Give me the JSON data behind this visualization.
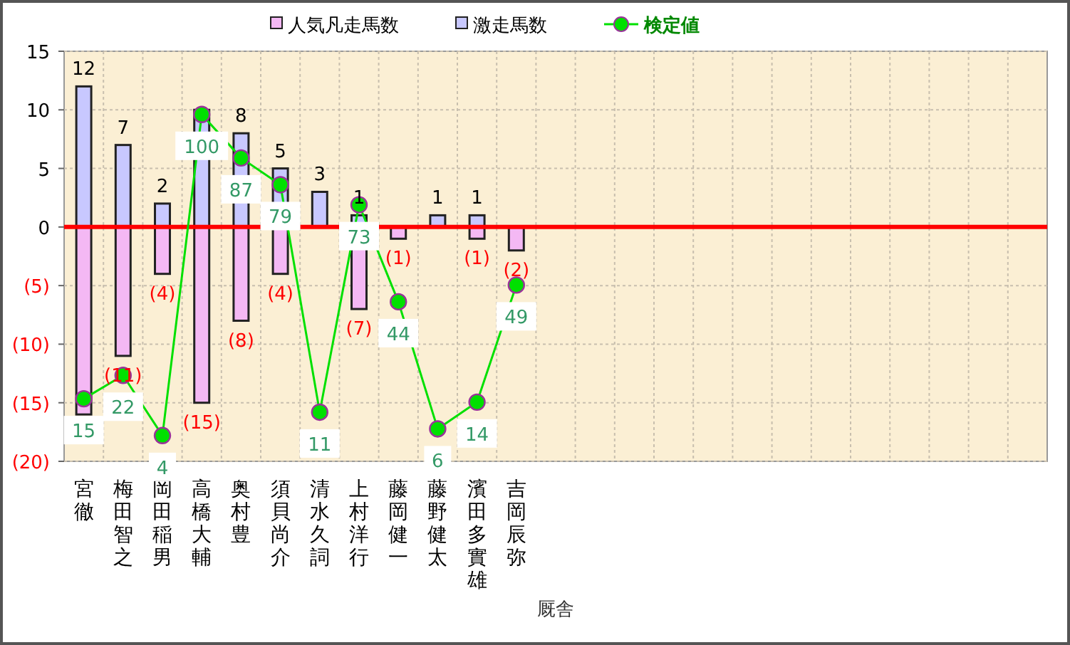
{
  "chart_data": {
    "type": "bar",
    "xlabel": "厩舎",
    "categories": [
      "宮徹",
      "梅田智之",
      "岡田稲男",
      "高橋大輔",
      "奥村豊",
      "須貝尚介",
      "清水久詞",
      "上村洋行",
      "藤岡健一",
      "藤野健太",
      "濱田多實雄",
      "吉岡辰弥",
      null,
      null,
      null,
      null,
      null,
      null,
      null,
      null,
      null,
      null,
      null,
      null,
      null
    ],
    "series": [
      {
        "name": "人気凡走馬数",
        "color": "#f4b8f4",
        "values": [
          -16,
          -11,
          -4,
          -15,
          -8,
          -4,
          null,
          -7,
          -1,
          null,
          -1,
          -2,
          null,
          null,
          null,
          null,
          null,
          null,
          null,
          null,
          null,
          null,
          null,
          null,
          null
        ],
        "value_labels": [
          null,
          "(11)",
          "(4)",
          "(15)",
          "(8)",
          "(4)",
          null,
          "(7)",
          "(1)",
          null,
          "(1)",
          "(2)",
          null,
          null,
          null,
          null,
          null,
          null,
          null,
          null,
          null,
          null,
          null,
          null,
          null
        ]
      },
      {
        "name": "激走馬数",
        "color": "#c8c8ff",
        "values": [
          12,
          7,
          2,
          10,
          8,
          5,
          3,
          1,
          null,
          1,
          1,
          null,
          null,
          null,
          null,
          null,
          null,
          null,
          null,
          null,
          null,
          null,
          null,
          null,
          null
        ],
        "value_labels": [
          "12",
          "7",
          "2",
          null,
          "8",
          "5",
          "3",
          "1",
          null,
          "1",
          "1",
          null,
          null,
          null,
          null,
          null,
          null,
          null,
          null,
          null,
          null,
          null,
          null,
          null,
          null
        ]
      },
      {
        "name": "検定値",
        "type": "line",
        "axis": "y2",
        "color": "#00e000",
        "marker": "circle",
        "values": [
          15,
          22,
          4,
          100,
          87,
          79,
          11,
          73,
          44,
          6,
          14,
          49,
          null,
          null,
          null,
          null,
          null,
          null,
          null,
          null,
          null,
          null,
          null,
          null,
          null
        ],
        "value_labels": [
          "15",
          "22",
          "4",
          "100",
          "87",
          "79",
          "11",
          "73",
          "44",
          "6",
          "14",
          "49",
          null,
          null,
          null,
          null,
          null,
          null,
          null,
          null,
          null,
          null,
          null,
          null,
          null
        ]
      }
    ],
    "ylim": [
      -20,
      15
    ],
    "yticks": [
      15,
      10,
      5,
      0,
      {
        "value": -5,
        "label": "(5)"
      },
      {
        "value": -10,
        "label": "(10)"
      },
      {
        "value": -15,
        "label": "(15)"
      },
      {
        "value": -20,
        "label": "(20)"
      }
    ],
    "y2lim": [
      -3.7,
      118.9
    ],
    "ref_lines": [
      {
        "axis": "y",
        "value": 0,
        "color": "#ff0000"
      }
    ],
    "grid": true,
    "legend": "top"
  }
}
